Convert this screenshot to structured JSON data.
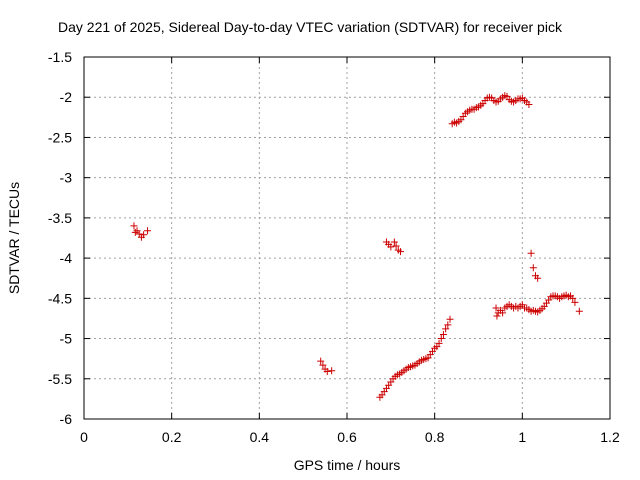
{
  "chart_data": {
    "type": "scatter",
    "title": "Day 221 of 2025, Sidereal Day-to-day VTEC variation (SDTVAR) for receiver pick",
    "xlabel": "GPS time / hours",
    "ylabel": "SDTVAR / TECUs",
    "xlim": [
      0,
      1.2
    ],
    "ylim": [
      -6,
      -1.5
    ],
    "xticks": [
      0,
      0.2,
      0.4,
      0.6,
      0.8,
      1,
      1.2
    ],
    "xtick_labels": [
      "0",
      "0.2",
      "0.4",
      "0.6",
      "0.8",
      "1",
      "1.2"
    ],
    "yticks": [
      -6,
      -5.5,
      -5,
      -4.5,
      -4,
      -3.5,
      -3,
      -2.5,
      -2,
      -1.5
    ],
    "ytick_labels": [
      "-6",
      "-5.5",
      "-5",
      "-4.5",
      "-4",
      "-3.5",
      "-3",
      "-2.5",
      "-2",
      "-1.5"
    ],
    "grid": true,
    "marker": "+",
    "marker_color": "#cc0000",
    "series": [
      {
        "points": [
          [
            0.114,
            -3.6
          ],
          [
            0.117,
            -3.68
          ],
          [
            0.121,
            -3.66
          ],
          [
            0.126,
            -3.7
          ],
          [
            0.131,
            -3.74
          ],
          [
            0.136,
            -3.71
          ],
          [
            0.145,
            -3.66
          ],
          [
            0.54,
            -5.28
          ],
          [
            0.545,
            -5.33
          ],
          [
            0.55,
            -5.38
          ],
          [
            0.555,
            -5.41
          ],
          [
            0.565,
            -5.4
          ],
          [
            0.69,
            -3.8
          ],
          [
            0.695,
            -3.83
          ],
          [
            0.7,
            -3.86
          ],
          [
            0.708,
            -3.8
          ],
          [
            0.712,
            -3.85
          ],
          [
            0.717,
            -3.9
          ],
          [
            0.722,
            -3.92
          ],
          [
            0.675,
            -5.73
          ],
          [
            0.68,
            -5.7
          ],
          [
            0.685,
            -5.66
          ],
          [
            0.69,
            -5.62
          ],
          [
            0.695,
            -5.58
          ],
          [
            0.7,
            -5.54
          ],
          [
            0.705,
            -5.5
          ],
          [
            0.71,
            -5.47
          ],
          [
            0.715,
            -5.45
          ],
          [
            0.72,
            -5.44
          ],
          [
            0.725,
            -5.42
          ],
          [
            0.73,
            -5.4
          ],
          [
            0.735,
            -5.38
          ],
          [
            0.74,
            -5.36
          ],
          [
            0.745,
            -5.35
          ],
          [
            0.75,
            -5.34
          ],
          [
            0.755,
            -5.33
          ],
          [
            0.76,
            -5.31
          ],
          [
            0.765,
            -5.29
          ],
          [
            0.77,
            -5.27
          ],
          [
            0.775,
            -5.26
          ],
          [
            0.78,
            -5.25
          ],
          [
            0.785,
            -5.24
          ],
          [
            0.79,
            -5.2
          ],
          [
            0.795,
            -5.16
          ],
          [
            0.8,
            -5.12
          ],
          [
            0.805,
            -5.1
          ],
          [
            0.81,
            -5.06
          ],
          [
            0.815,
            -5.0
          ],
          [
            0.82,
            -4.95
          ],
          [
            0.825,
            -4.88
          ],
          [
            0.83,
            -4.83
          ],
          [
            0.835,
            -4.76
          ],
          [
            0.84,
            -2.33
          ],
          [
            0.845,
            -2.31
          ],
          [
            0.85,
            -2.32
          ],
          [
            0.855,
            -2.3
          ],
          [
            0.86,
            -2.28
          ],
          [
            0.865,
            -2.24
          ],
          [
            0.87,
            -2.2
          ],
          [
            0.875,
            -2.18
          ],
          [
            0.88,
            -2.16
          ],
          [
            0.885,
            -2.15
          ],
          [
            0.89,
            -2.15
          ],
          [
            0.895,
            -2.13
          ],
          [
            0.9,
            -2.12
          ],
          [
            0.905,
            -2.1
          ],
          [
            0.91,
            -2.08
          ],
          [
            0.915,
            -2.04
          ],
          [
            0.92,
            -2.01
          ],
          [
            0.925,
            -2.0
          ],
          [
            0.93,
            -2.01
          ],
          [
            0.935,
            -2.04
          ],
          [
            0.94,
            -2.06
          ],
          [
            0.945,
            -2.05
          ],
          [
            0.95,
            -2.02
          ],
          [
            0.955,
            -2.0
          ],
          [
            0.96,
            -1.98
          ],
          [
            0.965,
            -1.99
          ],
          [
            0.97,
            -2.03
          ],
          [
            0.975,
            -2.05
          ],
          [
            0.98,
            -2.06
          ],
          [
            0.985,
            -2.04
          ],
          [
            0.99,
            -2.02
          ],
          [
            0.995,
            -2.02
          ],
          [
            1.0,
            -2.01
          ],
          [
            1.005,
            -2.04
          ],
          [
            1.01,
            -2.06
          ],
          [
            1.015,
            -2.09
          ],
          [
            0.94,
            -4.62
          ],
          [
            0.942,
            -4.72
          ],
          [
            0.945,
            -4.68
          ],
          [
            0.95,
            -4.65
          ],
          [
            0.955,
            -4.68
          ],
          [
            0.96,
            -4.62
          ],
          [
            0.965,
            -4.6
          ],
          [
            0.97,
            -4.58
          ],
          [
            0.975,
            -4.6
          ],
          [
            0.98,
            -4.62
          ],
          [
            0.985,
            -4.6
          ],
          [
            0.99,
            -4.62
          ],
          [
            0.995,
            -4.6
          ],
          [
            1.0,
            -4.58
          ],
          [
            1.005,
            -4.62
          ],
          [
            1.01,
            -4.62
          ],
          [
            1.015,
            -4.64
          ],
          [
            1.02,
            -4.66
          ],
          [
            1.025,
            -4.65
          ],
          [
            1.03,
            -4.66
          ],
          [
            1.035,
            -4.67
          ],
          [
            1.04,
            -4.65
          ],
          [
            1.045,
            -4.63
          ],
          [
            1.05,
            -4.6
          ],
          [
            1.055,
            -4.56
          ],
          [
            1.06,
            -4.52
          ],
          [
            1.065,
            -4.48
          ],
          [
            1.07,
            -4.47
          ],
          [
            1.075,
            -4.47
          ],
          [
            1.08,
            -4.48
          ],
          [
            1.085,
            -4.5
          ],
          [
            1.09,
            -4.48
          ],
          [
            1.095,
            -4.47
          ],
          [
            1.1,
            -4.46
          ],
          [
            1.105,
            -4.48
          ],
          [
            1.11,
            -4.47
          ],
          [
            1.115,
            -4.5
          ],
          [
            1.12,
            -4.55
          ],
          [
            1.13,
            -4.66
          ],
          [
            1.02,
            -3.94
          ],
          [
            1.025,
            -4.12
          ],
          [
            1.03,
            -4.22
          ],
          [
            1.035,
            -4.25
          ]
        ]
      }
    ]
  }
}
